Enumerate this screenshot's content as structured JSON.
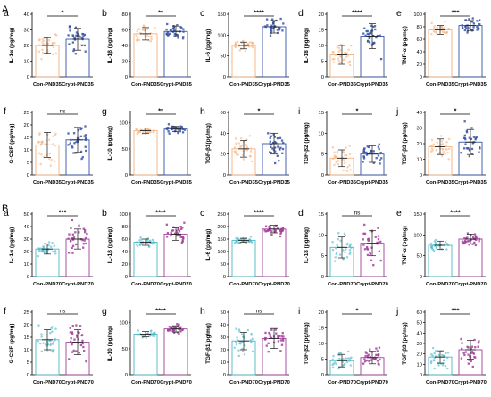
{
  "sections": [
    {
      "label": "A",
      "groups": [
        "Con-PND35",
        "Crypt-PND35"
      ],
      "colors": [
        "#f6b27f",
        "#3753a6"
      ],
      "panels": [
        {
          "label": "a",
          "ylabel": "IL-1α (pg/mg)",
          "ticks": [
            0,
            10,
            20,
            30,
            40
          ],
          "ylim": [
            0,
            40
          ],
          "values": [
            20,
            24
          ],
          "sd": [
            5,
            7
          ],
          "sig": "*"
        },
        {
          "label": "b",
          "ylabel": "IL-1β (pg/mg)",
          "ticks": [
            0,
            20,
            40,
            60,
            80
          ],
          "ylim": [
            0,
            80
          ],
          "values": [
            55,
            58
          ],
          "sd": [
            8,
            7
          ],
          "sig": "**"
        },
        {
          "label": "c",
          "ylabel": "IL-6 (pg/mg)",
          "ticks": [
            0,
            50,
            100,
            150
          ],
          "ylim": [
            0,
            150
          ],
          "values": [
            75,
            120
          ],
          "sd": [
            8,
            15
          ],
          "sig": "****"
        },
        {
          "label": "d",
          "ylabel": "IL-18 (pg/mg)",
          "ticks": [
            0,
            5,
            10,
            15,
            20
          ],
          "ylim": [
            0,
            20
          ],
          "values": [
            7,
            13
          ],
          "sd": [
            3,
            4
          ],
          "sig": "****"
        },
        {
          "label": "e",
          "ylabel": "TNF-α (pg/mg)",
          "ticks": [
            0,
            20,
            40,
            60,
            80,
            100
          ],
          "ylim": [
            0,
            100
          ],
          "values": [
            75,
            82
          ],
          "sd": [
            7,
            8
          ],
          "sig": "***"
        },
        {
          "label": "f",
          "ylabel": "G-CSF (pg/mg)",
          "ticks": [
            0,
            5,
            10,
            15,
            20,
            25
          ],
          "ylim": [
            0,
            25
          ],
          "values": [
            12,
            14
          ],
          "sd": [
            5,
            5
          ],
          "sig": "ns"
        },
        {
          "label": "g",
          "ylabel": "IL-10 (pg/mg)",
          "ticks": [
            0,
            50,
            100
          ],
          "ylim": [
            0,
            120
          ],
          "values": [
            85,
            88
          ],
          "sd": [
            5,
            5
          ],
          "sig": "**"
        },
        {
          "label": "h",
          "ylabel": "TGF-β1(pg/mg)",
          "ticks": [
            0,
            20,
            40,
            60
          ],
          "ylim": [
            0,
            60
          ],
          "values": [
            25,
            30
          ],
          "sd": [
            8,
            10
          ],
          "sig": "*"
        },
        {
          "label": "i",
          "ylabel": "TGF-β2 (pg/mg)",
          "ticks": [
            0,
            5,
            10,
            15
          ],
          "ylim": [
            0,
            15
          ],
          "values": [
            4,
            5
          ],
          "sd": [
            2,
            2
          ],
          "sig": "*"
        },
        {
          "label": "j",
          "ylabel": "TGF-β3 (pg/mg)",
          "ticks": [
            0,
            10,
            20,
            30,
            40
          ],
          "ylim": [
            0,
            40
          ],
          "values": [
            18,
            21
          ],
          "sd": [
            5,
            8
          ],
          "sig": "*"
        }
      ]
    },
    {
      "label": "B",
      "groups": [
        "Con-PND70",
        "Crypt-PND70"
      ],
      "colors": [
        "#4cb8c9",
        "#a13f9a"
      ],
      "panels": [
        {
          "label": "a",
          "ylabel": "IL-1α (pg/mg)",
          "ticks": [
            0,
            10,
            20,
            30,
            40,
            50
          ],
          "ylim": [
            0,
            50
          ],
          "values": [
            22,
            30
          ],
          "sd": [
            4,
            8
          ],
          "sig": "***"
        },
        {
          "label": "b",
          "ylabel": "IL-1β (pg/mg)",
          "ticks": [
            0,
            20,
            40,
            60,
            80,
            100
          ],
          "ylim": [
            0,
            100
          ],
          "values": [
            55,
            68
          ],
          "sd": [
            5,
            10
          ],
          "sig": "****"
        },
        {
          "label": "c",
          "ylabel": "IL-6 (pg/mg)",
          "ticks": [
            0,
            50,
            100,
            150,
            200,
            250
          ],
          "ylim": [
            0,
            250
          ],
          "values": [
            145,
            190
          ],
          "sd": [
            8,
            15
          ],
          "sig": "****"
        },
        {
          "label": "d",
          "ylabel": "IL-18 (pg/mg)",
          "ticks": [
            0,
            5,
            10,
            15
          ],
          "ylim": [
            0,
            15
          ],
          "values": [
            7,
            8
          ],
          "sd": [
            2.5,
            3
          ],
          "sig": "ns"
        },
        {
          "label": "e",
          "ylabel": "TNF-α (pg/mg)",
          "ticks": [
            0,
            50,
            100,
            150
          ],
          "ylim": [
            0,
            150
          ],
          "values": [
            75,
            90
          ],
          "sd": [
            10,
            12
          ],
          "sig": "****"
        },
        {
          "label": "f",
          "ylabel": "G-CSF (pg/mg)",
          "ticks": [
            0,
            5,
            10,
            15,
            20,
            25
          ],
          "ylim": [
            0,
            25
          ],
          "values": [
            14,
            13
          ],
          "sd": [
            4,
            5
          ],
          "sig": "ns"
        },
        {
          "label": "g",
          "ylabel": "IL-10 (pg/mg)",
          "ticks": [
            0,
            50,
            100
          ],
          "ylim": [
            0,
            120
          ],
          "values": [
            78,
            88
          ],
          "sd": [
            5,
            6
          ],
          "sig": "****"
        },
        {
          "label": "h",
          "ylabel": "TGF-β1(pg/mg)",
          "ticks": [
            0,
            10,
            20,
            30,
            40,
            50
          ],
          "ylim": [
            0,
            50
          ],
          "values": [
            27,
            29
          ],
          "sd": [
            7,
            8
          ],
          "sig": "ns"
        },
        {
          "label": "i",
          "ylabel": "TGF-β2 (pg/mg)",
          "ticks": [
            0,
            5,
            10,
            15,
            20
          ],
          "ylim": [
            0,
            20
          ],
          "values": [
            4.5,
            5.5
          ],
          "sd": [
            2,
            2
          ],
          "sig": "*"
        },
        {
          "label": "j",
          "ylabel": "TGF-β3 (pg/mg)",
          "ticks": [
            0,
            10,
            20,
            30,
            40,
            50,
            60
          ],
          "ylim": [
            0,
            60
          ],
          "values": [
            17,
            24
          ],
          "sd": [
            6,
            9
          ],
          "sig": "***"
        }
      ]
    }
  ],
  "chart_data": {
    "type": "bar",
    "note_points": "Each bar shows group mean with SD error bar and individual sample points.",
    "sections": [
      "A",
      "B"
    ]
  }
}
